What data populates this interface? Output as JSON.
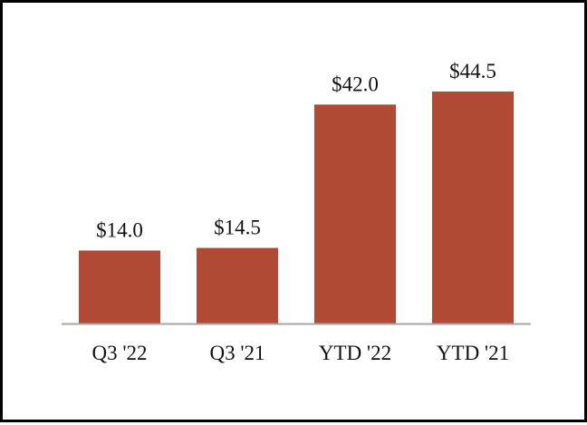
{
  "chart_data": {
    "type": "bar",
    "title": "",
    "xlabel": "",
    "ylabel": "",
    "categories": [
      "Q3 '22",
      "Q3 '21",
      "YTD '22",
      "YTD '21"
    ],
    "values": [
      14.0,
      14.5,
      42.0,
      44.5
    ],
    "value_labels": [
      "$14.0",
      "$14.5",
      "$42.0",
      "$44.5"
    ],
    "ylim": [
      0,
      44.5
    ],
    "grid": false,
    "legend": "none",
    "bar_color": "#B04A35",
    "axis_color": "#A6A6A6"
  }
}
